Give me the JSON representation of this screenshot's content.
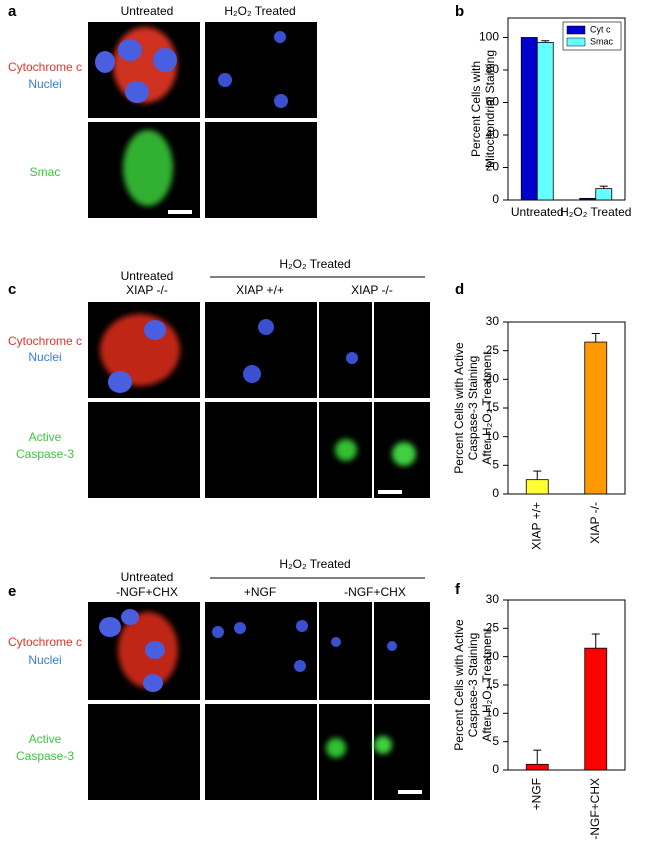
{
  "figure": {
    "panel_a": {
      "label": "a",
      "columns": [
        "Untreated",
        "H₂O₂ Treated"
      ],
      "rows": [
        [
          "Cytochrome c",
          "Nuclei"
        ],
        [
          "Smac"
        ]
      ]
    },
    "panel_c": {
      "label": "c",
      "group": "H₂O₂ Treated",
      "columns": [
        [
          "Untreated",
          "XIAP -/-"
        ],
        [
          "XIAP +/+"
        ],
        [
          "XIAP -/-"
        ]
      ],
      "rows": [
        [
          "Cytochrome c",
          "Nuclei"
        ],
        [
          "Active",
          "Caspase-3"
        ]
      ]
    },
    "panel_e": {
      "label": "e",
      "group": "H₂O₂ Treated",
      "columns": [
        [
          "Untreated",
          "-NGF+CHX"
        ],
        [
          "+NGF"
        ],
        [
          "-NGF+CHX"
        ]
      ],
      "rows": [
        [
          "Cytochrome c",
          "Nuclei"
        ],
        [
          "Active",
          "Caspase-3"
        ]
      ]
    }
  },
  "chart_data": [
    {
      "type": "bar",
      "label": "b",
      "ylabel": [
        "Percent Cells with",
        "Mitochondrial Staining"
      ],
      "categories": [
        "Untreated",
        "H₂O₂ Treated"
      ],
      "series": [
        {
          "name": "Cyt c",
          "color": "#0000cc",
          "values": [
            100,
            1
          ]
        },
        {
          "name": "Smac",
          "color": "#66ffff",
          "values": [
            97,
            7
          ],
          "errors": [
            1,
            1.5
          ]
        }
      ],
      "ylim": [
        0,
        112
      ],
      "yticks": [
        0,
        20,
        40,
        60,
        80,
        100
      ],
      "legend": "upper right"
    },
    {
      "type": "bar",
      "label": "d",
      "ylabel": [
        "Percent Cells with Active",
        "Caspase-3 Staining",
        "After H₂O₂ Treatment"
      ],
      "categories": [
        "XIAP +/+",
        "XIAP -/-"
      ],
      "values": [
        2.5,
        26.5
      ],
      "errors": [
        1.5,
        1.5
      ],
      "colors": [
        "#ffff33",
        "#ff9900"
      ],
      "ylim": [
        0,
        30
      ],
      "yticks": [
        0,
        5,
        10,
        15,
        20,
        25,
        30
      ]
    },
    {
      "type": "bar",
      "label": "f",
      "ylabel": [
        "Percent Cells with Active",
        "Caspase-3 Staining",
        "After H₂O₂ Treatment"
      ],
      "categories": [
        "+NGF",
        "-NGF+CHX"
      ],
      "values": [
        1,
        21.5
      ],
      "errors": [
        2.5,
        2.5
      ],
      "colors": [
        "#ff0000",
        "#ff0000"
      ],
      "ylim": [
        0,
        30
      ],
      "yticks": [
        0,
        5,
        10,
        15,
        20,
        25,
        30
      ]
    }
  ]
}
